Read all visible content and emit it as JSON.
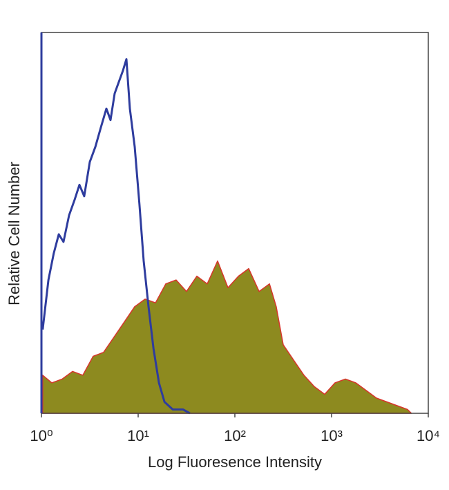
{
  "chart_data": {
    "type": "histogram-overlay",
    "xlabel": "Log Fluoresence Intensity",
    "ylabel": "Relative Cell Number",
    "xscale": "log",
    "xlim": [
      1,
      10000
    ],
    "xticks": [
      {
        "value": 1,
        "label": "10⁰"
      },
      {
        "value": 10,
        "label": "10¹"
      },
      {
        "value": 100,
        "label": "10²"
      },
      {
        "value": 1000,
        "label": "10³"
      },
      {
        "value": 10000,
        "label": "10⁴"
      }
    ],
    "ylim": [
      0,
      100
    ],
    "series": [
      {
        "color": "#d7352c",
        "fill": "#8d8a1f",
        "x": [
          1.03,
          1.28,
          1.64,
          2.1,
          2.68,
          3.43,
          4.39,
          5.62,
          7.2,
          9.21,
          11.8,
          15.1,
          19.3,
          24.7,
          31.6,
          40.5,
          51.8,
          66.3,
          84.8,
          109,
          139,
          178,
          228,
          268,
          316,
          405,
          518,
          663,
          848,
          1085,
          1389,
          1778,
          2275,
          2911,
          3728,
          4770,
          6105,
          6690
        ],
        "values": [
          10,
          8,
          9,
          11,
          10,
          15,
          16,
          20,
          24,
          28,
          30,
          29,
          34,
          35,
          32,
          36,
          34,
          40,
          33,
          36,
          38,
          32,
          34,
          28,
          18,
          14,
          10,
          7,
          5,
          8,
          9,
          8,
          6,
          4,
          3,
          2,
          1,
          0
        ]
      },
      {
        "color": "#2e3c9e",
        "x": [
          1.03,
          1.18,
          1.34,
          1.51,
          1.69,
          1.93,
          2.2,
          2.47,
          2.77,
          3.16,
          3.61,
          4.11,
          4.69,
          5.18,
          5.72,
          6.31,
          6.96,
          7.56,
          8.21,
          9.21,
          10.3,
          11.4,
          12.8,
          14.4,
          16.4,
          18.7,
          22.8,
          29.1,
          34.3
        ],
        "values": [
          22,
          35,
          42,
          47,
          45,
          52,
          56,
          60,
          57,
          66,
          70,
          75,
          80,
          77,
          84,
          87,
          90,
          93,
          80,
          70,
          55,
          40,
          28,
          17,
          8,
          3,
          1,
          1,
          0
        ]
      }
    ]
  }
}
